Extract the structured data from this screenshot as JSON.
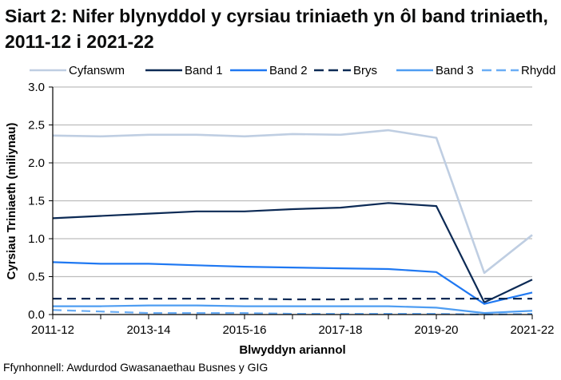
{
  "title": "Siart 2: Nifer blynyddol y cyrsiau triniaeth yn ôl band triniaeth, 2011-12 i 2021-22",
  "source": "Ffynhonnell: Awdurdod Gwasanaethau Busnes y GIG",
  "chart_data": {
    "type": "line",
    "title": "Siart 2: Nifer blynyddol y cyrsiau triniaeth yn ôl band triniaeth, 2011-12 i 2021-22",
    "xlabel": "Blwyddyn ariannol",
    "ylabel": "Cyrsiau Triniaeth (miliynau)",
    "ylim": [
      0,
      3.0
    ],
    "yticks": [
      "0.0",
      "0.5",
      "1.0",
      "1.5",
      "2.0",
      "2.5",
      "3.0"
    ],
    "ytick_values": [
      0,
      0.5,
      1.0,
      1.5,
      2.0,
      2.5,
      3.0
    ],
    "grid": true,
    "legend_position": "top",
    "x": [
      "2011-12",
      "2012-13",
      "2013-14",
      "2014-15",
      "2015-16",
      "2016-17",
      "2017-18",
      "2018-19",
      "2019-20",
      "2020-21",
      "2021-22"
    ],
    "xtick_labels": [
      "2011-12",
      "",
      "2013-14",
      "",
      "2015-16",
      "",
      "2017-18",
      "",
      "2019-20",
      "",
      "2021-22"
    ],
    "series": [
      {
        "name": "Cyfanswm",
        "color": "#BFCEE2",
        "dash": false,
        "values": [
          2.36,
          2.35,
          2.37,
          2.37,
          2.35,
          2.38,
          2.37,
          2.43,
          2.33,
          0.55,
          1.05
        ]
      },
      {
        "name": "Band 1",
        "color": "#0C2A55",
        "dash": false,
        "values": [
          1.27,
          1.3,
          1.33,
          1.36,
          1.36,
          1.39,
          1.41,
          1.47,
          1.43,
          0.16,
          0.46
        ]
      },
      {
        "name": "Band 2",
        "color": "#1F78F2",
        "dash": false,
        "values": [
          0.69,
          0.67,
          0.67,
          0.65,
          0.63,
          0.62,
          0.61,
          0.6,
          0.56,
          0.14,
          0.29
        ]
      },
      {
        "name": "Brys",
        "color": "#0C2A55",
        "dash": true,
        "values": [
          0.21,
          0.21,
          0.21,
          0.21,
          0.21,
          0.2,
          0.2,
          0.21,
          0.21,
          0.21,
          0.21
        ]
      },
      {
        "name": "Band 3",
        "color": "#4E9DF2",
        "dash": false,
        "values": [
          0.11,
          0.11,
          0.12,
          0.12,
          0.11,
          0.11,
          0.11,
          0.11,
          0.09,
          0.02,
          0.05
        ]
      },
      {
        "name": "Rhydd",
        "color": "#6AADF5",
        "dash": true,
        "values": [
          0.06,
          0.04,
          0.02,
          0.02,
          0.02,
          0.01,
          0.01,
          0.01,
          0.01,
          0.0,
          0.01
        ]
      }
    ]
  }
}
